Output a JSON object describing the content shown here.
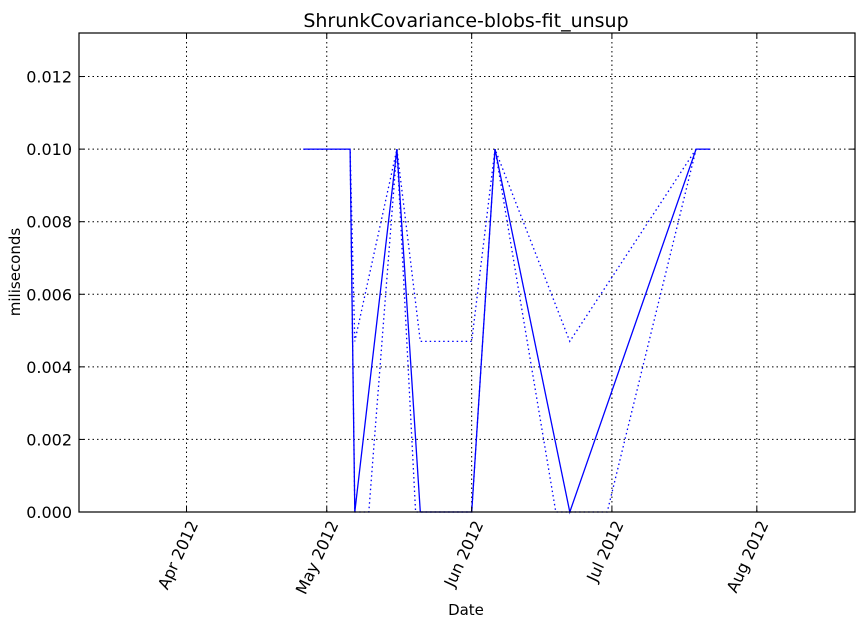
{
  "chart_data": {
    "type": "line",
    "title": "ShrunkCovariance-blobs-fit_unsup",
    "xlabel": "Date",
    "ylabel": "miliseconds",
    "xlim": [
      "2012-03-09",
      "2012-08-22"
    ],
    "ylim": [
      0,
      0.0132
    ],
    "grid": true,
    "x_ticks": [
      {
        "date": "2012-04-01",
        "label": "Apr 2012"
      },
      {
        "date": "2012-05-01",
        "label": "May 2012"
      },
      {
        "date": "2012-06-01",
        "label": "Jun 2012"
      },
      {
        "date": "2012-07-01",
        "label": "Jul 2012"
      },
      {
        "date": "2012-08-01",
        "label": "Aug 2012"
      }
    ],
    "y_ticks": [
      {
        "value": 0.0,
        "label": "0.000"
      },
      {
        "value": 0.002,
        "label": "0.002"
      },
      {
        "value": 0.004,
        "label": "0.004"
      },
      {
        "value": 0.006,
        "label": "0.006"
      },
      {
        "value": 0.008,
        "label": "0.008"
      },
      {
        "value": 0.01,
        "label": "0.010"
      },
      {
        "value": 0.012,
        "label": "0.012"
      }
    ],
    "series": [
      {
        "style": "solid",
        "x": [
          "2012-04-26",
          "2012-05-06",
          "2012-05-07",
          "2012-05-16",
          "2012-05-21",
          "2012-06-01",
          "2012-06-06",
          "2012-06-22",
          "2012-07-19",
          "2012-07-22"
        ],
        "y": [
          0.01,
          0.01,
          0.0,
          0.01,
          0.0,
          0.0,
          0.01,
          0.0,
          0.01,
          0.01
        ]
      },
      {
        "style": "dotted",
        "x": [
          "2012-04-26",
          "2012-05-06",
          "2012-05-07",
          "2012-05-16",
          "2012-05-21",
          "2012-06-01",
          "2012-06-06",
          "2012-06-22",
          "2012-07-19",
          "2012-07-22"
        ],
        "y": [
          0.01,
          0.01,
          0.0047,
          0.01,
          0.0047,
          0.0047,
          0.01,
          0.0047,
          0.01,
          0.01
        ]
      },
      {
        "style": "dotted",
        "x": [
          "2012-04-26",
          "2012-05-06",
          "2012-05-07",
          "2012-05-10",
          "2012-05-16",
          "2012-05-20",
          "2012-06-01",
          "2012-06-06",
          "2012-06-19",
          "2012-06-22",
          "2012-06-30",
          "2012-07-19",
          "2012-07-22"
        ],
        "y": [
          0.01,
          0.01,
          0.0,
          0.0,
          0.01,
          0.0,
          0.0,
          0.01,
          0.0,
          0.0,
          0.0,
          0.01,
          0.01
        ]
      }
    ]
  }
}
